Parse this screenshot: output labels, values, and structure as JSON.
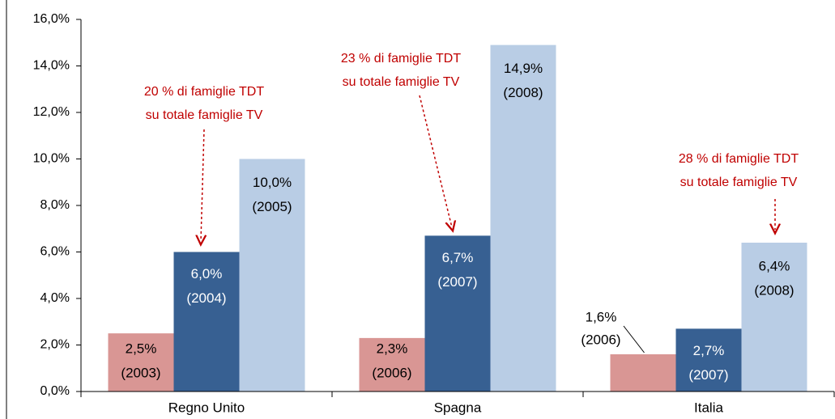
{
  "chart_data": {
    "type": "bar",
    "categories": [
      "Regno Unito",
      "Spagna",
      "Italia"
    ],
    "series": [
      {
        "color": "#d99694",
        "values": [
          2.5,
          2.3,
          1.6
        ],
        "value_labels": [
          "2,5%",
          "2,3%",
          "1,6%"
        ],
        "years": [
          "(2003)",
          "(2006)",
          "(2006)"
        ]
      },
      {
        "color": "#376092",
        "values": [
          6.0,
          6.7,
          2.7
        ],
        "value_labels": [
          "6,0%",
          "6,7%",
          "2,7%"
        ],
        "years": [
          "(2004)",
          "(2007)",
          "(2007)"
        ]
      },
      {
        "color": "#b9cde5",
        "values": [
          10.0,
          14.9,
          6.4
        ],
        "value_labels": [
          "10,0%",
          "14,9%",
          "6,4%"
        ],
        "years": [
          "(2005)",
          "(2008)",
          "(2008)"
        ]
      }
    ],
    "annotations": [
      {
        "lines": [
          "20 % di famiglie TDT",
          "su totale famiglie TV"
        ]
      },
      {
        "lines": [
          "23 % di famiglie TDT",
          "su totale famiglie TV"
        ]
      },
      {
        "lines": [
          "28 % di famiglie TDT",
          "su totale famiglie TV"
        ]
      }
    ],
    "ylim": [
      0,
      16
    ],
    "yticks": [
      {
        "value": 0,
        "label": "0,0%"
      },
      {
        "value": 2,
        "label": "2,0%"
      },
      {
        "value": 4,
        "label": "4,0%"
      },
      {
        "value": 6,
        "label": "6,0%"
      },
      {
        "value": 8,
        "label": "8,0%"
      },
      {
        "value": 10,
        "label": "10,0%"
      },
      {
        "value": 12,
        "label": "12,0%"
      },
      {
        "value": 14,
        "label": "14,0%"
      },
      {
        "value": 16,
        "label": "16,0%"
      }
    ]
  }
}
